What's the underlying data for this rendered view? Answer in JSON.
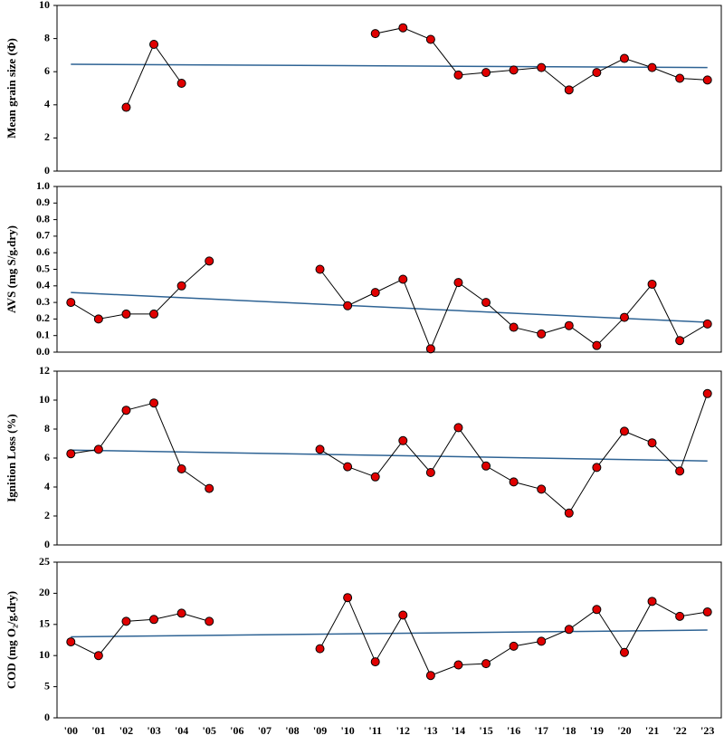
{
  "chart_data": [
    {
      "type": "line",
      "ylabel": "Mean grain size (Φ)",
      "values": [
        null,
        null,
        3.85,
        7.65,
        5.3,
        null,
        null,
        null,
        null,
        null,
        null,
        8.3,
        8.65,
        7.95,
        5.8,
        5.95,
        6.1,
        6.25,
        4.9,
        5.95,
        6.8,
        6.25,
        5.6,
        5.5
      ],
      "color": "#e00000",
      "trend": [
        6.45,
        6.25
      ],
      "trend_color": "#2e6394",
      "ylim": [
        0,
        10
      ],
      "yticks": [
        0,
        2,
        4,
        6,
        8,
        10
      ]
    },
    {
      "type": "line",
      "ylabel": "AVS (mg S/g.dry)",
      "values": [
        0.3,
        0.2,
        0.23,
        0.23,
        0.4,
        0.55,
        null,
        null,
        null,
        0.5,
        0.28,
        0.36,
        0.44,
        0.02,
        0.42,
        0.3,
        0.15,
        0.11,
        0.16,
        0.04,
        0.21,
        0.41,
        0.07,
        0.17
      ],
      "color": "#e00000",
      "trend": [
        0.36,
        0.18
      ],
      "trend_color": "#2e6394",
      "ylim": [
        0,
        1
      ],
      "yticks": [
        {
          "value": 0,
          "label": "0.0"
        },
        0.1,
        0.2,
        0.3,
        0.4,
        0.5,
        0.6,
        0.7,
        0.8,
        0.9,
        {
          "value": 1,
          "label": "1.0"
        }
      ]
    },
    {
      "type": "line",
      "ylabel": "Ignition Loss (%)",
      "values": [
        6.3,
        6.6,
        9.3,
        9.8,
        5.25,
        3.9,
        null,
        null,
        null,
        6.6,
        5.4,
        4.7,
        7.2,
        5.0,
        8.1,
        5.45,
        4.35,
        3.85,
        2.2,
        5.35,
        7.85,
        7.05,
        5.1,
        10.45
      ],
      "color": "#e00000",
      "trend": [
        6.55,
        5.8
      ],
      "trend_color": "#2e6394",
      "ylim": [
        0,
        12
      ],
      "yticks": [
        0,
        2,
        4,
        6,
        8,
        10,
        12
      ]
    },
    {
      "type": "line",
      "ylabel": "COD (mg O₂/g.dry)",
      "categories": [
        "'00",
        "'01",
        "'02",
        "'03",
        "'04",
        "'05",
        "'06",
        "'07",
        "'08",
        "'09",
        "'10",
        "'11",
        "'12",
        "'13",
        "'14",
        "'15",
        "'16",
        "'17",
        "'18",
        "'19",
        "'20",
        "'21",
        "'22",
        "'23"
      ],
      "values": [
        12.2,
        10.0,
        15.5,
        15.8,
        16.8,
        15.5,
        null,
        null,
        null,
        11.1,
        19.3,
        9.0,
        16.5,
        6.8,
        8.5,
        8.7,
        11.5,
        12.3,
        14.2,
        17.4,
        10.5,
        18.7,
        16.3,
        17.0
      ],
      "color": "#e00000",
      "trend": [
        13.0,
        14.1
      ],
      "trend_color": "#2e6394",
      "ylim": [
        0,
        25
      ],
      "yticks": [
        0,
        5,
        10,
        15,
        20,
        25
      ]
    }
  ]
}
